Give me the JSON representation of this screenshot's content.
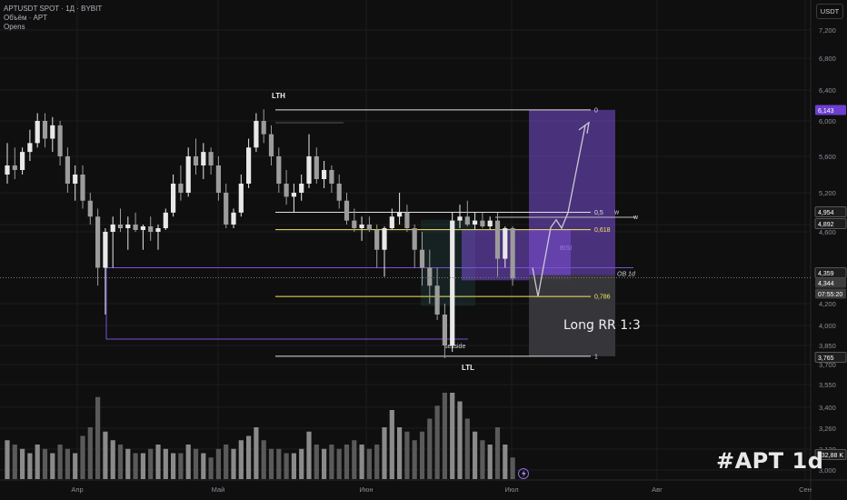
{
  "legend": {
    "symbol": "APTUSDT SPOT · 1Д · BYBIT",
    "volume": "Объём · APT",
    "opens": "Opens"
  },
  "currency": "USDT",
  "watermark": "#APT 1d",
  "colors": {
    "up": "#e8e8e8",
    "down": "#9c9c9c",
    "volume": "#6f6f6f",
    "purple": "#7b4fd6",
    "yellow": "#f5e663",
    "white": "#e0e0e0",
    "grid": "#1c1c1c",
    "axis_text": "#8a8e99"
  },
  "chart_data": {
    "type": "candlestick",
    "ylim": [
      3.0,
      7.3
    ],
    "y_ticks": [
      "7,200",
      "6,800",
      "6,400",
      "6,000",
      "5,600",
      "5,200",
      "4,800",
      "4,600",
      "4,200",
      "4,000",
      "3,850",
      "3,700",
      "3,550",
      "3,400",
      "3,260",
      "3,130",
      "3,000"
    ],
    "x_labels": [
      "Апр",
      "Май",
      "Июн",
      "Июл",
      "Авг",
      "Сен"
    ],
    "price_tags": [
      {
        "text": "6,143",
        "style": "purple"
      },
      {
        "text": "4,954",
        "style": "dark"
      },
      {
        "text": "4,892",
        "style": "dark"
      },
      {
        "text": "4,359",
        "style": "dark"
      },
      {
        "text": "4,344",
        "style": "grey"
      },
      {
        "text": "07:55:20",
        "style": "grey"
      },
      {
        "text": "3,765",
        "style": "dark"
      },
      {
        "text": "732,88 K",
        "style": "dark"
      }
    ],
    "annotations": {
      "lth": "LTH",
      "ltl": "LTL",
      "sellside": "sellside",
      "bisi": "BISI",
      "ob": "OB 1d",
      "long_label": "Long RR 1:3",
      "wedge": "w"
    },
    "fib_levels": [
      {
        "label": "0",
        "price": 6.143,
        "color": "white"
      },
      {
        "label": "0,5",
        "price": 4.954,
        "color": "white"
      },
      {
        "label": "0,618",
        "price": 4.66,
        "color": "yellow"
      },
      {
        "label": "0,786",
        "price": 4.24,
        "color": "yellow"
      },
      {
        "label": "1",
        "price": 3.765,
        "color": "white"
      }
    ],
    "candles": [
      [
        5.4,
        5.75,
        5.3,
        5.5
      ],
      [
        5.5,
        5.7,
        5.35,
        5.45
      ],
      [
        5.45,
        5.7,
        5.4,
        5.65
      ],
      [
        5.65,
        5.9,
        5.55,
        5.75
      ],
      [
        5.75,
        6.1,
        5.7,
        6.0
      ],
      [
        6.0,
        6.1,
        5.7,
        5.8
      ],
      [
        5.8,
        6.05,
        5.65,
        5.95
      ],
      [
        5.95,
        6.0,
        5.5,
        5.6
      ],
      [
        5.6,
        5.7,
        5.2,
        5.3
      ],
      [
        5.3,
        5.5,
        5.1,
        5.4
      ],
      [
        5.4,
        5.5,
        5.0,
        5.1
      ],
      [
        5.1,
        5.2,
        4.8,
        4.9
      ],
      [
        4.9,
        5.0,
        4.3,
        4.4
      ],
      [
        4.4,
        4.7,
        4.1,
        4.6
      ],
      [
        4.6,
        4.9,
        4.4,
        4.8
      ],
      [
        4.8,
        5.0,
        4.6,
        4.7
      ],
      [
        4.7,
        4.9,
        4.5,
        4.8
      ],
      [
        4.8,
        4.95,
        4.6,
        4.65
      ],
      [
        4.65,
        4.8,
        4.5,
        4.75
      ],
      [
        4.75,
        4.9,
        4.55,
        4.6
      ],
      [
        4.6,
        4.8,
        4.5,
        4.7
      ],
      [
        4.7,
        5.0,
        4.65,
        4.95
      ],
      [
        4.95,
        5.4,
        4.9,
        5.3
      ],
      [
        5.3,
        5.5,
        5.1,
        5.2
      ],
      [
        5.2,
        5.7,
        5.15,
        5.6
      ],
      [
        5.6,
        5.8,
        5.4,
        5.5
      ],
      [
        5.5,
        5.75,
        5.35,
        5.65
      ],
      [
        5.65,
        5.7,
        5.4,
        5.5
      ],
      [
        5.5,
        5.6,
        5.1,
        5.2
      ],
      [
        5.2,
        5.3,
        4.7,
        4.8
      ],
      [
        4.8,
        5.0,
        4.7,
        4.95
      ],
      [
        4.95,
        5.4,
        4.9,
        5.3
      ],
      [
        5.3,
        5.8,
        5.25,
        5.7
      ],
      [
        5.7,
        6.1,
        5.65,
        6.0
      ],
      [
        6.0,
        6.15,
        5.75,
        5.85
      ],
      [
        5.85,
        5.95,
        5.5,
        5.6
      ],
      [
        5.6,
        5.7,
        5.2,
        5.3
      ],
      [
        5.3,
        5.45,
        5.05,
        5.15
      ],
      [
        5.15,
        5.3,
        4.95,
        5.2
      ],
      [
        5.2,
        5.4,
        5.1,
        5.3
      ],
      [
        5.3,
        5.85,
        5.25,
        5.6
      ],
      [
        5.6,
        5.7,
        5.3,
        5.35
      ],
      [
        5.35,
        5.55,
        5.25,
        5.45
      ],
      [
        5.45,
        5.5,
        5.2,
        5.3
      ],
      [
        5.3,
        5.4,
        5.0,
        5.1
      ],
      [
        5.1,
        5.2,
        4.8,
        4.85
      ],
      [
        4.85,
        5.0,
        4.6,
        4.7
      ],
      [
        4.7,
        4.9,
        4.55,
        4.8
      ],
      [
        4.8,
        4.9,
        4.6,
        4.65
      ],
      [
        4.65,
        4.8,
        4.4,
        4.5
      ],
      [
        4.5,
        4.75,
        4.35,
        4.7
      ],
      [
        4.7,
        5.0,
        4.65,
        4.9
      ],
      [
        4.9,
        5.2,
        4.8,
        4.95
      ],
      [
        4.95,
        5.05,
        4.6,
        4.7
      ],
      [
        4.7,
        4.8,
        4.4,
        4.5
      ],
      [
        4.5,
        4.6,
        4.3,
        4.4
      ],
      [
        4.4,
        4.5,
        4.2,
        4.3
      ],
      [
        4.3,
        4.4,
        4.05,
        4.1
      ],
      [
        4.1,
        4.2,
        3.75,
        3.85
      ],
      [
        3.85,
        4.95,
        3.8,
        4.85
      ],
      [
        4.85,
        5.05,
        4.7,
        4.9
      ],
      [
        4.9,
        5.1,
        4.75,
        4.8
      ],
      [
        4.8,
        4.95,
        4.65,
        4.85
      ],
      [
        4.85,
        4.95,
        4.7,
        4.75
      ],
      [
        4.75,
        4.9,
        4.65,
        4.85
      ],
      [
        4.85,
        4.95,
        4.35,
        4.45
      ],
      [
        4.45,
        4.75,
        4.4,
        4.7
      ],
      [
        4.7,
        4.75,
        4.3,
        4.34
      ]
    ],
    "volumes": [
      0.45,
      0.4,
      0.35,
      0.3,
      0.4,
      0.35,
      0.3,
      0.4,
      0.35,
      0.3,
      0.5,
      0.6,
      0.95,
      0.55,
      0.45,
      0.4,
      0.35,
      0.3,
      0.3,
      0.35,
      0.4,
      0.35,
      0.3,
      0.3,
      0.4,
      0.35,
      0.3,
      0.25,
      0.35,
      0.4,
      0.35,
      0.45,
      0.5,
      0.6,
      0.45,
      0.35,
      0.35,
      0.3,
      0.3,
      0.35,
      0.55,
      0.4,
      0.35,
      0.4,
      0.35,
      0.4,
      0.45,
      0.4,
      0.35,
      0.4,
      0.6,
      0.8,
      0.6,
      0.55,
      0.45,
      0.55,
      0.7,
      0.85,
      1.0,
      1.0,
      0.9,
      0.7,
      0.55,
      0.45,
      0.4,
      0.6,
      0.4,
      0.25
    ]
  }
}
